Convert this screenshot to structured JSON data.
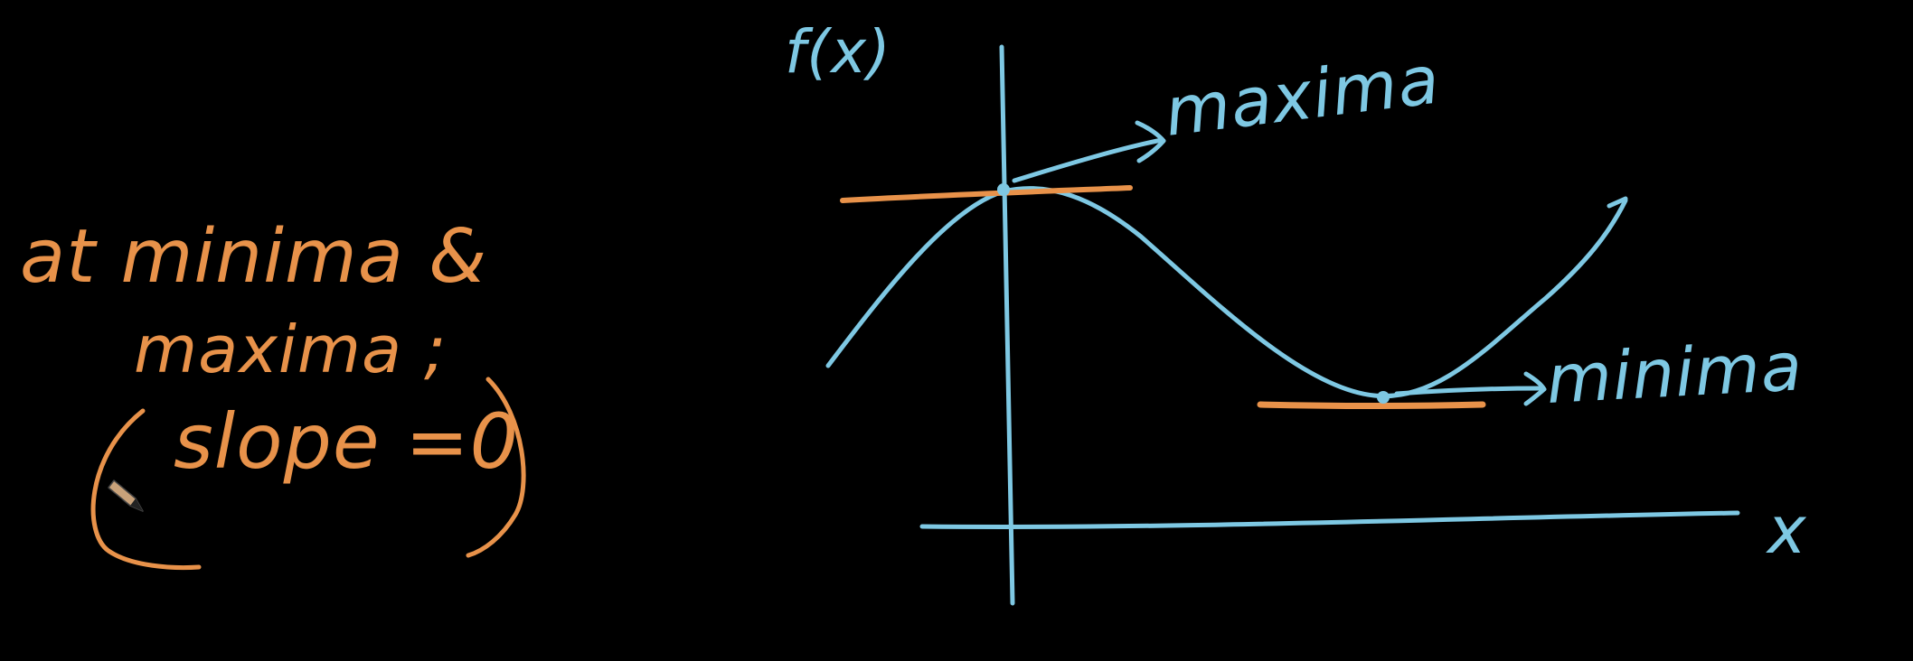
{
  "colors": {
    "background": "#000000",
    "curve_blue": "#7EC8E3",
    "note_orange": "#E8924A"
  },
  "note": {
    "line1": "at minima &",
    "line2": "maxima ;",
    "line3": "slope =0"
  },
  "graph": {
    "y_axis_label": "f(x)",
    "x_axis_label": "x",
    "maxima_label": "maxima",
    "minima_label": "minima"
  },
  "icons": {
    "cursor": "pencil-cursor-icon"
  }
}
